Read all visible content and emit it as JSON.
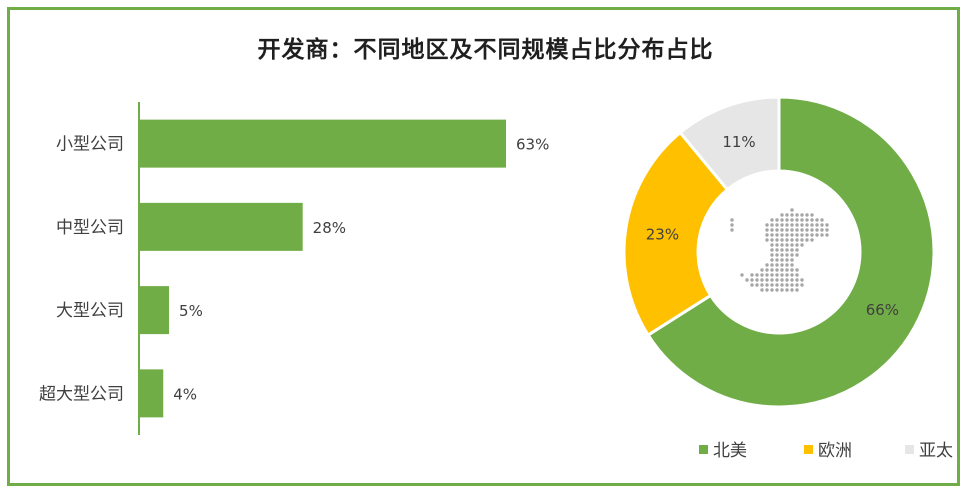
{
  "title": "开发商：不同地区及不同规模占比分布占比",
  "chart_data": [
    {
      "type": "bar",
      "orientation": "horizontal",
      "categories": [
        "小型公司",
        "中型公司",
        "大型公司",
        "超大型公司"
      ],
      "values": [
        63,
        28,
        5,
        4
      ],
      "value_labels": [
        "63%",
        "28%",
        "5%",
        "4%"
      ],
      "bar_color": "#70ad47",
      "xlim": [
        0,
        100
      ],
      "grid": false
    },
    {
      "type": "pie",
      "donut": true,
      "labels": [
        "北美",
        "欧洲",
        "亚太"
      ],
      "values": [
        66,
        23,
        11
      ],
      "value_labels": [
        "66%",
        "23%",
        "11%"
      ],
      "colors": [
        "#70ad47",
        "#ffc000",
        "#e7e6e6"
      ],
      "legend_position": "bottom-right"
    }
  ]
}
